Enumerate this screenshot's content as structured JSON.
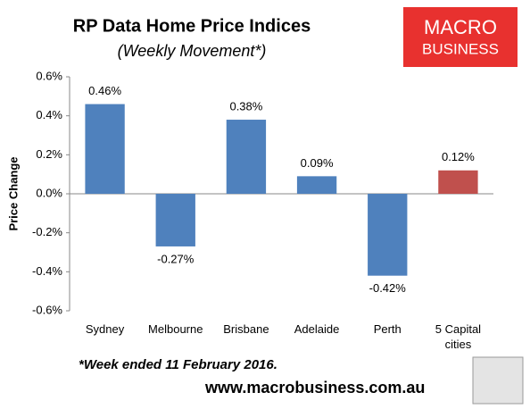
{
  "chart_data": {
    "type": "bar",
    "title": "RP Data Home Price Indices",
    "subtitle": "(Weekly Movement*)",
    "y_label": "Price Change",
    "categories": [
      "Sydney",
      "Melbourne",
      "Brisbane",
      "Adelaide",
      "Perth",
      "5 Capital cities"
    ],
    "values": [
      0.46,
      -0.27,
      0.38,
      0.09,
      -0.42,
      0.12
    ],
    "value_labels": [
      "0.46%",
      "-0.27%",
      "0.38%",
      "0.09%",
      "-0.42%",
      "0.12%"
    ],
    "colors": [
      "#4f81bd",
      "#4f81bd",
      "#4f81bd",
      "#4f81bd",
      "#4f81bd",
      "#c0504d"
    ],
    "ylim": [
      -0.6,
      0.6
    ],
    "yticks": [
      {
        "value": -0.6,
        "label": "-0.6%"
      },
      {
        "value": -0.4,
        "label": "-0.4%"
      },
      {
        "value": -0.2,
        "label": "-0.2%"
      },
      {
        "value": 0,
        "label": "0.0%"
      },
      {
        "value": 0.2,
        "label": "0.2%"
      },
      {
        "value": 0.4,
        "label": "0.4%"
      },
      {
        "value": 0.6,
        "label": "0.6%"
      }
    ],
    "grid": false,
    "footnote": "*Week ended 11 February 2016.",
    "source": "www.macrobusiness.com.au",
    "logo": [
      "MACRO",
      "BUSINESS"
    ]
  }
}
